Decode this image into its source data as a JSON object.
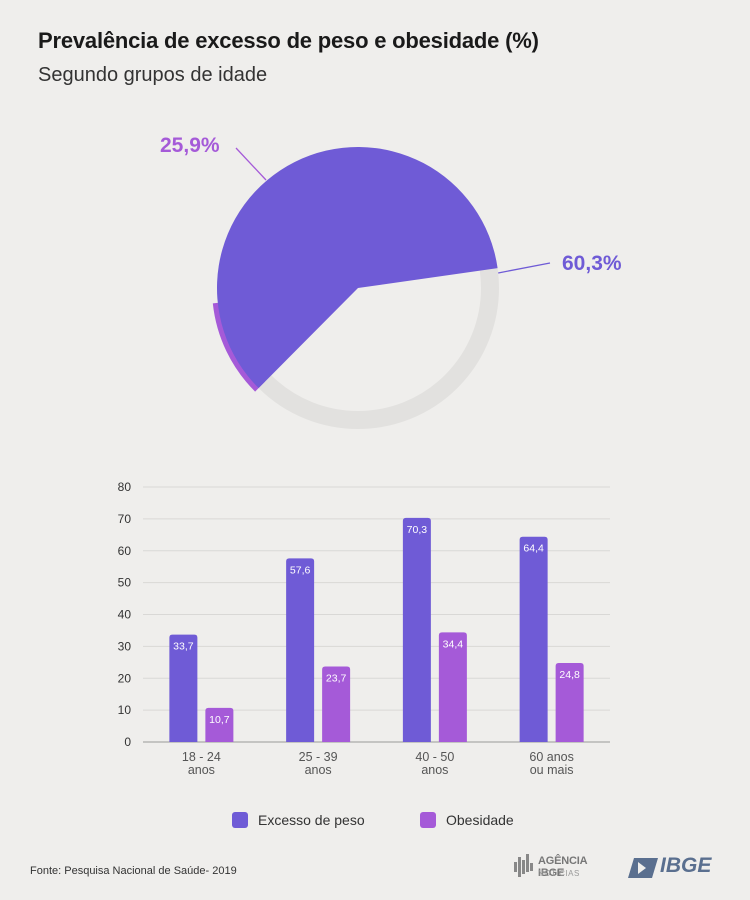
{
  "header": {
    "title": "Prevalência de excesso de peso e obesidade  (%)",
    "subtitle": "Segundo grupos de idade"
  },
  "colors": {
    "excesso": "#6f5bd6",
    "obesidade": "#a55ad8",
    "ring": "#e2e1df",
    "background": "#efeeec"
  },
  "chart_data": [
    {
      "type": "pie",
      "slices": [
        {
          "label": "60,3%",
          "value": 60.3
        },
        {
          "label": "25,9%",
          "value": 25.9
        }
      ]
    },
    {
      "type": "bar",
      "categories": [
        "18 - 24\nanos",
        "25 - 39\nanos",
        "40 - 50\nanos",
        "60 anos\nou mais"
      ],
      "series": [
        {
          "name": "Excesso de peso",
          "values": [
            33.7,
            57.6,
            70.3,
            64.4
          ],
          "labels": [
            "33,7",
            "57,6",
            "70,3",
            "64,4"
          ]
        },
        {
          "name": "Obesidade",
          "values": [
            10.7,
            23.7,
            34.4,
            24.8
          ],
          "labels": [
            "10,7",
            "23,7",
            "34,4",
            "24,8"
          ]
        }
      ],
      "ylim": [
        0,
        80
      ],
      "yticks": [
        0,
        10,
        20,
        30,
        40,
        50,
        60,
        70,
        80
      ],
      "grid": true,
      "legend": "bottom"
    }
  ],
  "legend": {
    "excesso_label": "Excesso de peso",
    "obesidade_label": "Obesidade"
  },
  "footer": {
    "source": "Fonte: Pesquisa Nacional de Saúde- 2019",
    "logo_agencia_line1": "AGÊNCIA IBGE",
    "logo_agencia_line2": "NOTÍCIAS",
    "logo_ibge": "IBGE"
  }
}
